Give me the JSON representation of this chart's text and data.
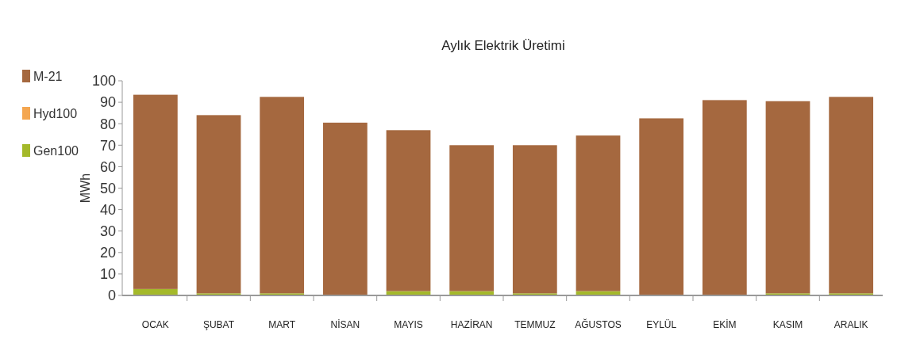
{
  "chart_data": {
    "type": "bar",
    "title": "Aylık Elektrik Üretimi",
    "ylabel": "MWh",
    "stacked": true,
    "legend": "top left",
    "grid": false,
    "categories": [
      "OCAK",
      "ŞUBAT",
      "MART",
      "NİSAN",
      "MAYIS",
      "HAZİRAN",
      "TEMMUZ",
      "AĞUSTOS",
      "EYLÜL",
      "EKİM",
      "KASIM",
      "ARALIK"
    ],
    "series": [
      {
        "name": "Gen100",
        "color": "#a4b92a",
        "values": [
          3,
          1,
          1,
          0,
          2,
          2,
          1,
          2,
          0,
          0,
          1,
          1
        ]
      },
      {
        "name": "Hyd100",
        "color": "#f4a650",
        "values": [
          0,
          0,
          0,
          0,
          0,
          0,
          0,
          0,
          0,
          0,
          0,
          0
        ]
      },
      {
        "name": "M-21",
        "color": "#a5683f",
        "values": [
          90.5,
          83,
          91.5,
          80.5,
          75,
          68,
          69,
          72.5,
          82.5,
          91,
          89.5,
          91.5
        ]
      }
    ],
    "ylim": [
      0,
      100
    ],
    "yticks": [
      0,
      10,
      20,
      30,
      40,
      50,
      60,
      70,
      80,
      90,
      100
    ]
  }
}
